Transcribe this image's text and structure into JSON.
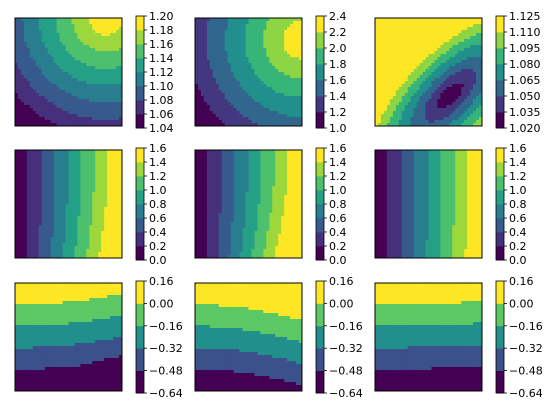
{
  "chart_data": {
    "type": "heatmap",
    "subtype": "filled-contour",
    "layout": "3x3 grid of contour plots, each with a vertical colorbar",
    "colormap": "viridis",
    "axes_ticks": "none",
    "panels": [
      {
        "name": "",
        "row": 0,
        "col": 0,
        "colorbar_levels": [
          1.04,
          1.06,
          1.08,
          1.1,
          1.12,
          1.14,
          1.16,
          1.18,
          1.2
        ],
        "colorbar_ticks": [
          "1.04",
          "1.06",
          "1.08",
          "1.10",
          "1.12",
          "1.14",
          "1.16",
          "1.18",
          "1.20"
        ],
        "field": "circular contours, peak at top-right",
        "shape": "radial",
        "peak": [
          0.85,
          1.0
        ]
      },
      {
        "name": "",
        "row": 0,
        "col": 1,
        "colorbar_levels": [
          1.0,
          1.2,
          1.4,
          1.6,
          1.8,
          2.0,
          2.2,
          2.4
        ],
        "colorbar_ticks": [
          "1.0",
          "1.2",
          "1.4",
          "1.6",
          "1.8",
          "2.0",
          "2.2",
          "2.4"
        ],
        "field": "circular contours, peak at right edge upper",
        "shape": "radial",
        "peak": [
          1.0,
          0.8
        ]
      },
      {
        "name": "",
        "row": 0,
        "col": 2,
        "colorbar_levels": [
          1.02,
          1.035,
          1.05,
          1.065,
          1.08,
          1.095,
          1.11,
          1.125
        ],
        "colorbar_ticks": [
          "1.020",
          "1.035",
          "1.050",
          "1.065",
          "1.080",
          "1.095",
          "1.110",
          "1.125"
        ],
        "field": "elliptical bowl, minimum at lower-right",
        "shape": "ellipse",
        "peak": [
          0.7,
          0.28
        ]
      },
      {
        "name": "",
        "row": 1,
        "col": 0,
        "colorbar_levels": [
          0.0,
          0.2,
          0.4,
          0.6,
          0.8,
          1.0,
          1.2,
          1.4,
          1.6
        ],
        "colorbar_ticks": [
          "0.0",
          "0.2",
          "0.4",
          "0.6",
          "0.8",
          "1.0",
          "1.2",
          "1.4",
          "1.6"
        ],
        "field": "increasing left to right, bands curve right at bottom",
        "shape": "lr-curved",
        "bend": 0.12
      },
      {
        "name": "",
        "row": 1,
        "col": 1,
        "colorbar_levels": [
          0.0,
          0.2,
          0.4,
          0.6,
          0.8,
          1.0,
          1.2,
          1.4,
          1.6
        ],
        "colorbar_ticks": [
          "0.0",
          "0.2",
          "0.4",
          "0.6",
          "0.8",
          "1.0",
          "1.2",
          "1.4",
          "1.6"
        ],
        "field": "increasing left to right, stronger curvature",
        "shape": "lr-curved",
        "bend": 0.18
      },
      {
        "name": "",
        "row": 1,
        "col": 2,
        "colorbar_levels": [
          0.0,
          0.2,
          0.4,
          0.6,
          0.8,
          1.0,
          1.2,
          1.4,
          1.6
        ],
        "colorbar_ticks": [
          "0.0",
          "0.2",
          "0.4",
          "0.6",
          "0.8",
          "1.0",
          "1.2",
          "1.4",
          "1.6"
        ],
        "field": "increasing left to right, nearly straight bands",
        "shape": "lr-curved",
        "bend": 0.04
      },
      {
        "name": "",
        "row": 2,
        "col": 0,
        "colorbar_levels": [
          -0.64,
          -0.48,
          -0.32,
          -0.16,
          0.0,
          0.16
        ],
        "colorbar_ticks": [
          "−0.64",
          "−0.48",
          "−0.32",
          "−0.16",
          "0.00",
          "0.16"
        ],
        "field": "decreasing top to bottom, bands dip at right",
        "shape": "tb-curved",
        "bend": 0.1,
        "corner": true
      },
      {
        "name": "",
        "row": 2,
        "col": 1,
        "colorbar_levels": [
          -0.64,
          -0.48,
          -0.32,
          -0.16,
          0.0,
          0.16
        ],
        "colorbar_ticks": [
          "−0.64",
          "−0.48",
          "−0.32",
          "−0.16",
          "0.00",
          "0.16"
        ],
        "field": "decreasing top to bottom, bands curve upward at right",
        "shape": "tb-curved",
        "bend": -0.15
      },
      {
        "name": "",
        "row": 2,
        "col": 2,
        "colorbar_levels": [
          -0.64,
          -0.48,
          -0.32,
          -0.16,
          0.0,
          0.16
        ],
        "colorbar_ticks": [
          "−0.64",
          "−0.48",
          "−0.32",
          "−0.16",
          "0.00",
          "0.16"
        ],
        "field": "decreasing top to bottom, nearly flat bands",
        "shape": "tb-curved",
        "bend": 0.03
      }
    ]
  }
}
